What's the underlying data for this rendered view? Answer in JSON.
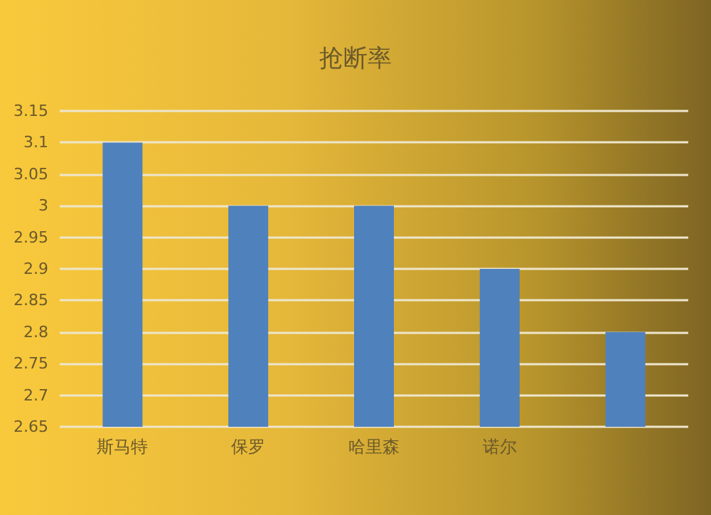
{
  "chart_data": {
    "type": "bar",
    "title": "抢断率",
    "categories": [
      "斯马特",
      "保罗",
      "哈里森",
      "诺尔",
      null
    ],
    "values": [
      3.1,
      3.0,
      3.0,
      2.9,
      2.8
    ],
    "color": "#4f81bd",
    "ylim": [
      2.65,
      3.15
    ],
    "yticks": [
      2.65,
      2.7,
      2.75,
      2.8,
      2.85,
      2.9,
      2.95,
      3,
      3.05,
      3.1,
      3.15
    ],
    "grid": "y"
  }
}
